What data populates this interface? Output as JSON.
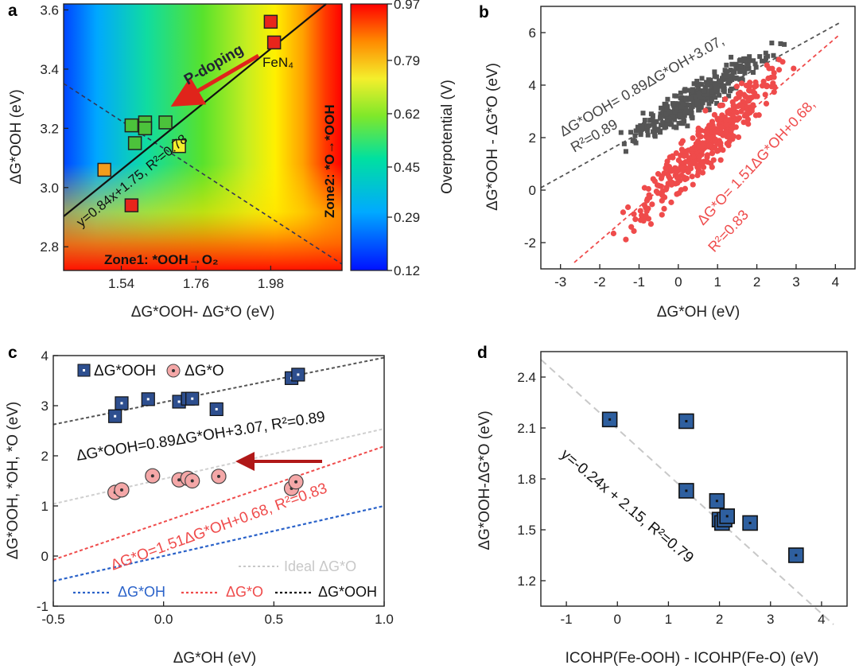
{
  "panels": {
    "a": {
      "letter": "a",
      "xlabel": "ΔG*OOH- ΔG*O (eV)",
      "ylabel": "ΔG*OOH (eV)",
      "xticks": [
        "1.54",
        "1.76",
        "1.98"
      ],
      "yticks": [
        "2.8",
        "3.0",
        "3.2",
        "3.4",
        "3.6"
      ],
      "colorbar_ticks": [
        "0.97",
        "0.79",
        "0.62",
        "0.45",
        "0.29",
        "0.12"
      ],
      "colorbar_label": "Overpotential (V)",
      "arrow_label": "P-doping",
      "fit_label": "y=0.84x+1.75, R²=0.78",
      "zone1": "Zone1: *OOH→O₂",
      "zone2": "Zone2: *O→*OOH",
      "point_label": "FeN₄"
    },
    "b": {
      "letter": "b",
      "xlabel": "ΔG*OH (eV)",
      "ylabel": "ΔG*OOH - ΔG*O (eV)",
      "xticks": [
        "-3",
        "-2",
        "-1",
        "0",
        "1",
        "2",
        "3",
        "4"
      ],
      "yticks": [
        "-2",
        "0",
        "2",
        "4",
        "6"
      ],
      "fit_ooh_1": "ΔG*OOH= 0.89ΔG*OH+3.07,",
      "fit_ooh_2": "R²=0.89",
      "fit_o_1": "ΔG*O= 1.51ΔG*OH+0.68,",
      "fit_o_2": "R²=0.83"
    },
    "c": {
      "letter": "c",
      "xlabel": "ΔG*OH  (eV)",
      "ylabel": "ΔG*OOH, *OH, *O (eV)",
      "xticks": [
        "-0.5",
        "0.0",
        "0.5",
        "1.0"
      ],
      "yticks": [
        "-1",
        "0",
        "1",
        "2",
        "3",
        "4"
      ],
      "legend_ooh": "ΔG*OOH",
      "legend_o": "ΔG*O",
      "fit_ooh": "ΔG*OOH=0.89ΔG*OH+3.07, R²=0.89",
      "fit_o": "ΔG*O=1.51ΔG*OH+0.68, R²=0.83",
      "ideal": "Ideal ΔG*O",
      "legend_line_oh": "ΔG*OH",
      "legend_line_o": "ΔG*O",
      "legend_line_ooh": "ΔG*OOH"
    },
    "d": {
      "letter": "d",
      "xlabel": "ICOHP(Fe-OOH) - ICOHP(Fe-O) (eV)",
      "ylabel": "ΔG*OOH-ΔG*O (eV)",
      "xticks": [
        "-1",
        "0",
        "1",
        "2",
        "3",
        "4"
      ],
      "yticks": [
        "1.2",
        "1.5",
        "1.8",
        "2.1",
        "2.4"
      ],
      "fit": "y=-0.24x + 2.15, R²=0.79"
    }
  },
  "chart_data": [
    {
      "panel": "a",
      "type": "heatmap",
      "title": "",
      "xlabel": "ΔG*OOH- ΔG*O (eV)",
      "ylabel": "ΔG*OOH (eV)",
      "xlim": [
        1.37,
        2.19
      ],
      "ylim": [
        2.72,
        3.62
      ],
      "colorbar": {
        "label": "Overpotential (V)",
        "min": 0.12,
        "max": 0.97
      },
      "points": [
        {
          "x": 1.98,
          "y": 3.56,
          "color": "#e8251b"
        },
        {
          "x": 1.99,
          "y": 3.49,
          "color": "#e8251b"
        },
        {
          "x": 1.49,
          "y": 3.06,
          "color": "#f39c1c"
        },
        {
          "x": 1.57,
          "y": 2.94,
          "color": "#e8251b"
        },
        {
          "x": 1.57,
          "y": 3.21,
          "color": "#4cc23b"
        },
        {
          "x": 1.61,
          "y": 3.22,
          "color": "#4cc23b"
        },
        {
          "x": 1.61,
          "y": 3.2,
          "color": "#4cc23b"
        },
        {
          "x": 1.58,
          "y": 3.15,
          "color": "#4cc23b"
        },
        {
          "x": 1.67,
          "y": 3.22,
          "color": "#4cc23b"
        },
        {
          "x": 1.71,
          "y": 3.14,
          "color": "#f4ef2c"
        }
      ],
      "fit_line": {
        "slope": 0.84,
        "intercept": 1.75,
        "r2": 0.78
      }
    },
    {
      "panel": "b",
      "type": "scatter",
      "xlabel": "ΔG*OH (eV)",
      "ylabel": "ΔG*OOH - ΔG*O (eV)",
      "xlim": [
        -3.5,
        4.5
      ],
      "ylim": [
        -3.0,
        7.0
      ],
      "series": [
        {
          "name": "ΔG*OOH",
          "color": "#555555",
          "fit": {
            "slope": 0.89,
            "intercept": 3.07,
            "r2": 0.89
          },
          "x_range": [
            -2.1,
            2.8
          ]
        },
        {
          "name": "ΔG*O",
          "color": "#ef4b4b",
          "fit": {
            "slope": 1.51,
            "intercept": 0.68,
            "r2": 0.83
          },
          "x_range": [
            -2.4,
            3.3
          ]
        }
      ]
    },
    {
      "panel": "c",
      "type": "scatter",
      "xlabel": "ΔG*OH  (eV)",
      "ylabel": "ΔG*OOH, *OH, *O (eV)",
      "xlim": [
        -0.5,
        1.0
      ],
      "ylim": [
        -1,
        4
      ],
      "series": [
        {
          "name": "ΔG*OOH",
          "x": [
            -0.22,
            -0.19,
            -0.07,
            0.07,
            0.11,
            0.13,
            0.24,
            0.58,
            0.61
          ],
          "y": [
            2.79,
            3.05,
            3.13,
            3.08,
            3.14,
            3.14,
            2.93,
            3.55,
            3.62
          ]
        },
        {
          "name": "ΔG*O",
          "x": [
            -0.22,
            -0.19,
            -0.05,
            0.07,
            0.11,
            0.13,
            0.25,
            0.58,
            0.6
          ],
          "y": [
            1.27,
            1.32,
            1.6,
            1.52,
            1.55,
            1.5,
            1.59,
            1.35,
            1.48
          ]
        }
      ],
      "lines": [
        {
          "name": "ΔG*OOH",
          "slope": 0.89,
          "intercept": 3.07
        },
        {
          "name": "Ideal ΔG*O",
          "slope": 1.0,
          "intercept": 1.54
        },
        {
          "name": "ΔG*O",
          "slope": 1.51,
          "intercept": 0.68
        },
        {
          "name": "ΔG*OH",
          "slope": 1.0,
          "intercept": 0.0
        }
      ]
    },
    {
      "panel": "d",
      "type": "scatter",
      "xlabel": "ICOHP(Fe-OOH) - ICOHP(Fe-O) (eV)",
      "ylabel": "ΔG*OOH-ΔG*O (eV)",
      "xlim": [
        -1.5,
        4.5
      ],
      "ylim": [
        1.05,
        2.55
      ],
      "x": [
        -0.15,
        1.35,
        1.35,
        1.95,
        2.0,
        2.05,
        2.1,
        2.15,
        2.6,
        3.5
      ],
      "y": [
        2.15,
        2.14,
        1.73,
        1.67,
        1.56,
        1.54,
        1.56,
        1.58,
        1.54,
        1.35
      ],
      "fit": {
        "slope": -0.24,
        "intercept": 2.15,
        "r2": 0.79
      }
    }
  ]
}
